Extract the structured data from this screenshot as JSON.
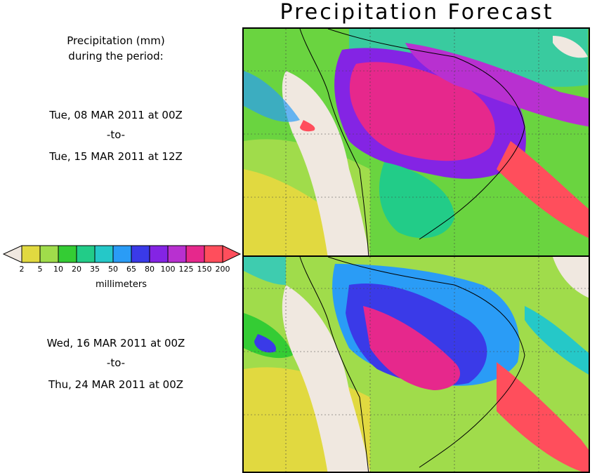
{
  "title": "Precipitation Forecast",
  "header": {
    "line1": "Precipitation (mm)",
    "line2": "during the period:"
  },
  "period1": {
    "start": "Tue, 08 MAR 2011 at 00Z",
    "sep": "-to-",
    "end": "Tue, 15 MAR 2011 at 12Z"
  },
  "period2": {
    "start": "Wed, 16 MAR 2011 at 00Z",
    "sep": "-to-",
    "end": "Thu, 24 MAR 2011 at 00Z"
  },
  "legend": {
    "unit": "millimeters",
    "ticks": [
      "2",
      "5",
      "10",
      "20",
      "35",
      "50",
      "65",
      "80",
      "100",
      "125",
      "150",
      "200"
    ],
    "colors": [
      "#f0e8e0",
      "#e1d940",
      "#a0dc4b",
      "#34cc34",
      "#22cc88",
      "#25c8c8",
      "#2a9cf6",
      "#3a3ae8",
      "#8424e4",
      "#b830d0",
      "#e6288c",
      "#ff4e5c"
    ]
  }
}
